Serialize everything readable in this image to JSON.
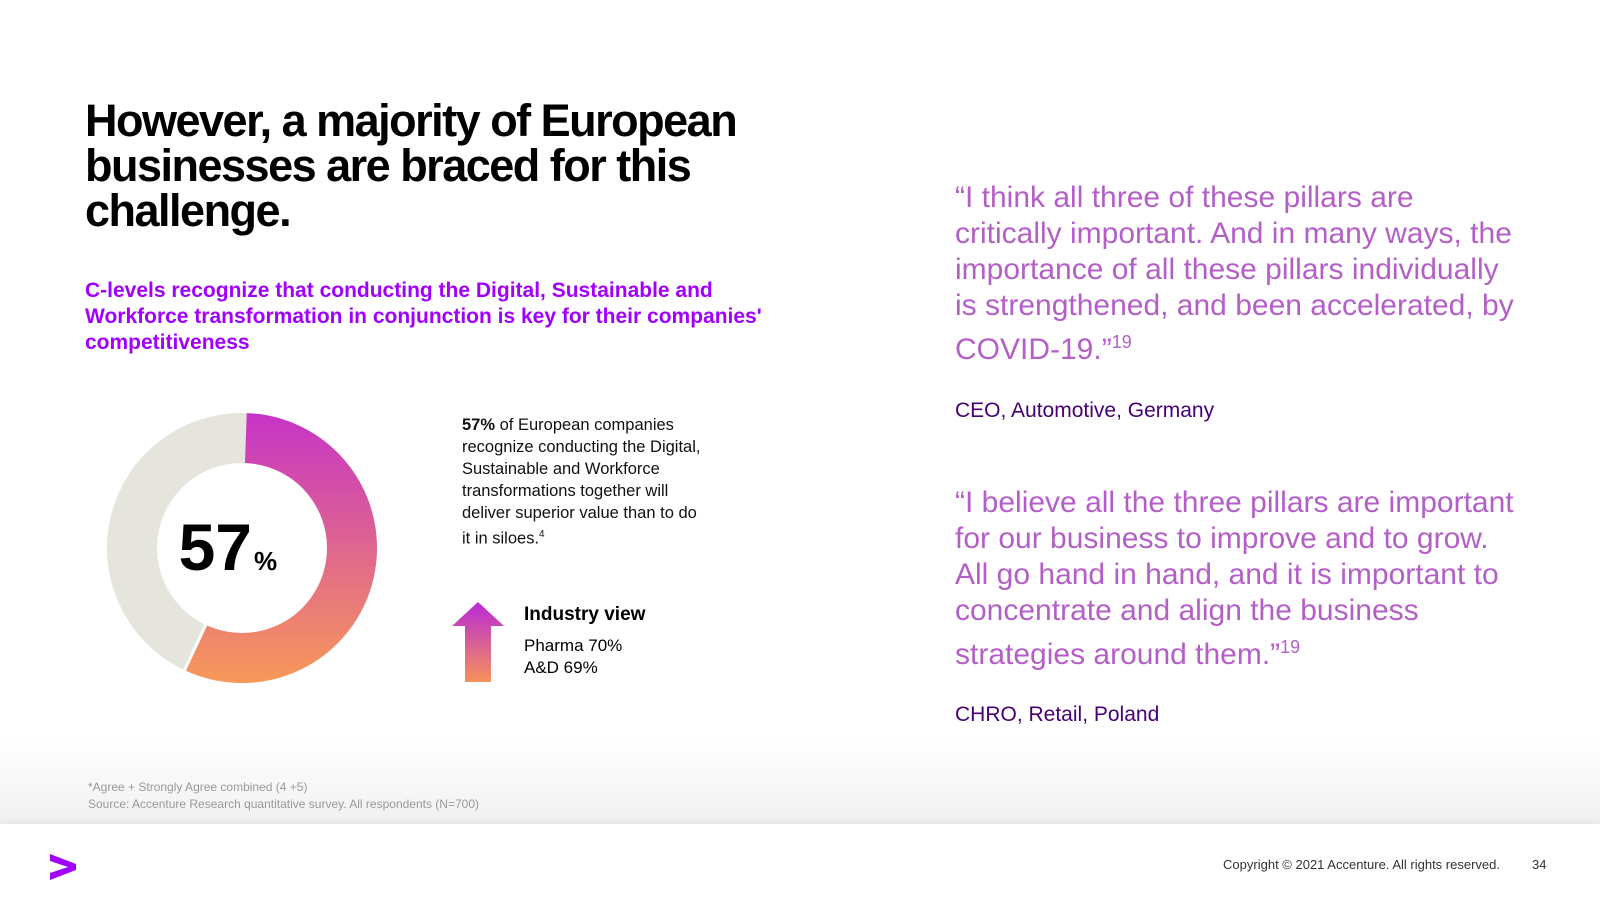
{
  "title": "However, a majority of European businesses are braced for this challenge.",
  "subtitle": "C-levels recognize that conducting the Digital, Sustainable and Workforce transformation in conjunction is key for their companies' competitiveness",
  "donut": {
    "value": 57,
    "unit": "%"
  },
  "stat": {
    "bold": "57%",
    "text": "of European companies recognize conducting the Digital, Sustainable and Workforce transformations together will deliver superior value than to do it in siloes.",
    "sup": "4"
  },
  "industry_view": {
    "title": "Industry view",
    "items": [
      "Pharma 70%",
      "A&D 69%"
    ]
  },
  "quotes": [
    {
      "text": "“I think all three of these pillars are critically important. And in many ways, the importance of all these pillars individually is strengthened, and been accelerated, by COVID-19.”",
      "sup": "19",
      "attribution": "CEO, Automotive, Germany"
    },
    {
      "text": "“I believe all the three pillars are important for our business to improve and to grow. All go hand in hand, and it is important to concentrate and align the business strategies around them.”",
      "sup": "19",
      "attribution": "CHRO, Retail, Poland"
    }
  ],
  "footnotes": [
    "*Agree + Strongly Agree combined (4 +5)",
    "Source: Accenture Research quantitative survey. All respondents (N=700)"
  ],
  "footer": {
    "copyright": "Copyright © 2021 Accenture. All rights reserved.",
    "page": "34"
  }
}
